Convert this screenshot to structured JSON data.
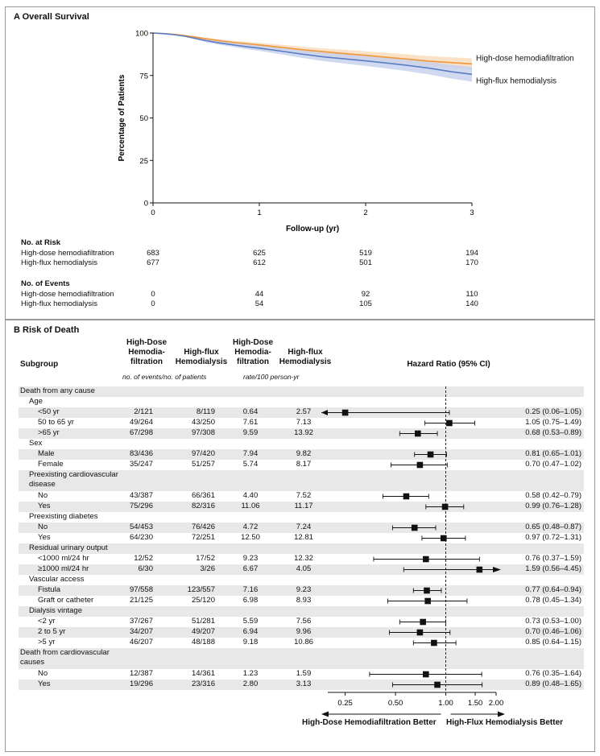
{
  "panelA": {
    "label": "A  Overall Survival",
    "chart_data": {
      "type": "line",
      "xlabel": "Follow-up (yr)",
      "ylabel": "Percentage of Patients",
      "xticks": [
        "0",
        "1",
        "2",
        "3"
      ],
      "yticks": [
        "0",
        "25",
        "50",
        "75",
        "100"
      ],
      "xlim": [
        0,
        3
      ],
      "ylim": [
        0,
        100
      ],
      "series": [
        {
          "name": "High-dose hemodiafiltration",
          "color": "#f0963c",
          "band": "#fad9b6",
          "x": [
            0,
            0.1,
            0.2,
            0.3,
            0.4,
            0.5,
            0.6,
            0.7,
            0.8,
            0.9,
            1.0,
            1.2,
            1.4,
            1.6,
            1.8,
            2.0,
            2.2,
            2.4,
            2.6,
            2.8,
            3.0
          ],
          "y": [
            100,
            99.7,
            99.2,
            98.5,
            97.6,
            96.6,
            95.7,
            94.9,
            94.2,
            93.6,
            93.0,
            91.6,
            90.2,
            89.0,
            87.9,
            86.9,
            85.7,
            84.6,
            83.4,
            82.6,
            81.8
          ]
        },
        {
          "name": "High-flux hemodialysis",
          "color": "#5b7bc4",
          "band": "#c3d0ec",
          "x": [
            0,
            0.1,
            0.2,
            0.3,
            0.4,
            0.5,
            0.6,
            0.7,
            0.8,
            0.9,
            1.0,
            1.2,
            1.4,
            1.6,
            1.8,
            2.0,
            2.2,
            2.4,
            2.6,
            2.8,
            3.0
          ],
          "y": [
            100,
            99.6,
            99.0,
            98.1,
            96.8,
            95.5,
            94.4,
            93.5,
            92.6,
            91.8,
            91.1,
            89.4,
            87.6,
            86.0,
            84.8,
            83.6,
            82.3,
            80.9,
            79.3,
            77.3,
            75.7
          ]
        }
      ]
    },
    "at_risk": {
      "heading": "No. at Risk",
      "rows": [
        {
          "label": "High-dose hemodiafiltration",
          "values": [
            "683",
            "625",
            "519",
            "194"
          ]
        },
        {
          "label": "High-flux hemodialysis",
          "values": [
            "677",
            "612",
            "501",
            "170"
          ]
        }
      ]
    },
    "events": {
      "heading": "No. of Events",
      "rows": [
        {
          "label": "High-dose hemodiafiltration",
          "values": [
            "0",
            "44",
            "92",
            "110"
          ]
        },
        {
          "label": "High-flux hemodialysis",
          "values": [
            "0",
            "54",
            "105",
            "140"
          ]
        }
      ]
    }
  },
  "panelB": {
    "label": "B  Risk of Death",
    "headers": {
      "subgroup": "Subgroup",
      "hdf1": "High-Dose\nHemodia-\nfiltration",
      "hd1": "High-flux\nHemodialysis",
      "sub1": "no. of events/no. of patients",
      "hdf2": "High-Dose\nHemodia-\nfiltration",
      "hd2": "High-flux\nHemodialysis",
      "sub2": "rate/100 person-yr",
      "hr": "Hazard Ratio (95% CI)"
    },
    "chart_data": {
      "type": "forest",
      "x_scale": "log",
      "xlim": [
        0.18,
        2.0
      ],
      "reference": 1.0,
      "xticks": [
        "0.25",
        "0.50",
        "1.00",
        "1.50",
        "2.00"
      ],
      "left_label": "High-Dose Hemodiafiltration Better",
      "right_label": "High-Flux Hemodialysis Better",
      "rows": [
        {
          "label": "Death from any cause",
          "indent": 0
        },
        {
          "label": "Age",
          "indent": 1
        },
        {
          "label": "<50 yr",
          "indent": 2,
          "hdf": "2/121",
          "hd": "8/119",
          "hdf_rate": "0.64",
          "hd_rate": "2.57",
          "hr": 0.25,
          "lo": 0.06,
          "hi": 1.05,
          "ci_text": "0.25 (0.06–1.05)",
          "arrow_left": true
        },
        {
          "label": "50 to 65 yr",
          "indent": 2,
          "hdf": "49/264",
          "hd": "43/250",
          "hdf_rate": "7.61",
          "hd_rate": "7.13",
          "hr": 1.05,
          "lo": 0.75,
          "hi": 1.49,
          "ci_text": "1.05 (0.75–1.49)"
        },
        {
          "label": ">65 yr",
          "indent": 2,
          "hdf": "67/298",
          "hd": "97/308",
          "hdf_rate": "9.59",
          "hd_rate": "13.92",
          "hr": 0.68,
          "lo": 0.53,
          "hi": 0.89,
          "ci_text": "0.68 (0.53–0.89)"
        },
        {
          "label": "Sex",
          "indent": 1
        },
        {
          "label": "Male",
          "indent": 2,
          "hdf": "83/436",
          "hd": "97/420",
          "hdf_rate": "7.94",
          "hd_rate": "9.82",
          "hr": 0.81,
          "lo": 0.65,
          "hi": 1.01,
          "ci_text": "0.81 (0.65–1.01)"
        },
        {
          "label": "Female",
          "indent": 2,
          "hdf": "35/247",
          "hd": "51/257",
          "hdf_rate": "5.74",
          "hd_rate": "8.17",
          "hr": 0.7,
          "lo": 0.47,
          "hi": 1.02,
          "ci_text": "0.70 (0.47–1.02)"
        },
        {
          "label": "Preexisting cardiovascular",
          "label2": "disease",
          "indent": 1
        },
        {
          "label": "No",
          "indent": 2,
          "hdf": "43/387",
          "hd": "66/361",
          "hdf_rate": "4.40",
          "hd_rate": "7.52",
          "hr": 0.58,
          "lo": 0.42,
          "hi": 0.79,
          "ci_text": "0.58 (0.42–0.79)"
        },
        {
          "label": "Yes",
          "indent": 2,
          "hdf": "75/296",
          "hd": "82/316",
          "hdf_rate": "11.06",
          "hd_rate": "11.17",
          "hr": 0.99,
          "lo": 0.76,
          "hi": 1.28,
          "ci_text": "0.99 (0.76–1.28)"
        },
        {
          "label": "Preexisting diabetes",
          "indent": 1
        },
        {
          "label": "No",
          "indent": 2,
          "hdf": "54/453",
          "hd": "76/426",
          "hdf_rate": "4.72",
          "hd_rate": "7.24",
          "hr": 0.65,
          "lo": 0.48,
          "hi": 0.87,
          "ci_text": "0.65 (0.48–0.87)"
        },
        {
          "label": "Yes",
          "indent": 2,
          "hdf": "64/230",
          "hd": "72/251",
          "hdf_rate": "12.50",
          "hd_rate": "12.81",
          "hr": 0.97,
          "lo": 0.72,
          "hi": 1.31,
          "ci_text": "0.97 (0.72–1.31)"
        },
        {
          "label": "Residual urinary output",
          "indent": 1
        },
        {
          "label": "<1000 ml/24 hr",
          "indent": 2,
          "hdf": "12/52",
          "hd": "17/52",
          "hdf_rate": "9.23",
          "hd_rate": "12.32",
          "hr": 0.76,
          "lo": 0.37,
          "hi": 1.59,
          "ci_text": "0.76 (0.37–1.59)"
        },
        {
          "label": "≥1000 ml/24 hr",
          "indent": 2,
          "hdf": "6/30",
          "hd": "3/26",
          "hdf_rate": "6.67",
          "hd_rate": "4.05",
          "hr": 1.59,
          "lo": 0.56,
          "hi": 4.45,
          "ci_text": "1.59 (0.56–4.45)",
          "arrow_right": true
        },
        {
          "label": "Vascular access",
          "indent": 1
        },
        {
          "label": "Fistula",
          "indent": 2,
          "hdf": "97/558",
          "hd": "123/557",
          "hdf_rate": "7.16",
          "hd_rate": "9.23",
          "hr": 0.77,
          "lo": 0.64,
          "hi": 0.94,
          "ci_text": "0.77 (0.64–0.94)"
        },
        {
          "label": "Graft or catheter",
          "indent": 2,
          "hdf": "21/125",
          "hd": "25/120",
          "hdf_rate": "6.98",
          "hd_rate": "8.93",
          "hr": 0.78,
          "lo": 0.45,
          "hi": 1.34,
          "ci_text": "0.78 (0.45–1.34)"
        },
        {
          "label": "Dialysis vintage",
          "indent": 1
        },
        {
          "label": "<2 yr",
          "indent": 2,
          "hdf": "37/267",
          "hd": "51/281",
          "hdf_rate": "5.59",
          "hd_rate": "7.56",
          "hr": 0.73,
          "lo": 0.53,
          "hi": 1.0,
          "ci_text": "0.73 (0.53–1.00)"
        },
        {
          "label": "2 to 5 yr",
          "indent": 2,
          "hdf": "34/207",
          "hd": "49/207",
          "hdf_rate": "6.94",
          "hd_rate": "9.96",
          "hr": 0.7,
          "lo": 0.46,
          "hi": 1.06,
          "ci_text": "0.70 (0.46–1.06)"
        },
        {
          "label": ">5 yr",
          "indent": 2,
          "hdf": "46/207",
          "hd": "48/188",
          "hdf_rate": "9.18",
          "hd_rate": "10.86",
          "hr": 0.85,
          "lo": 0.64,
          "hi": 1.15,
          "ci_text": "0.85 (0.64–1.15)"
        },
        {
          "label": "Death from cardiovascular",
          "label2": "causes",
          "indent": 0
        },
        {
          "label": "No",
          "indent": 2,
          "hdf": "12/387",
          "hd": "14/361",
          "hdf_rate": "1.23",
          "hd_rate": "1.59",
          "hr": 0.76,
          "lo": 0.35,
          "hi": 1.64,
          "ci_text": "0.76 (0.35–1.64)"
        },
        {
          "label": "Yes",
          "indent": 2,
          "hdf": "19/296",
          "hd": "23/316",
          "hdf_rate": "2.80",
          "hd_rate": "3.13",
          "hr": 0.89,
          "lo": 0.48,
          "hi": 1.65,
          "ci_text": "0.89 (0.48–1.65)"
        }
      ]
    }
  }
}
